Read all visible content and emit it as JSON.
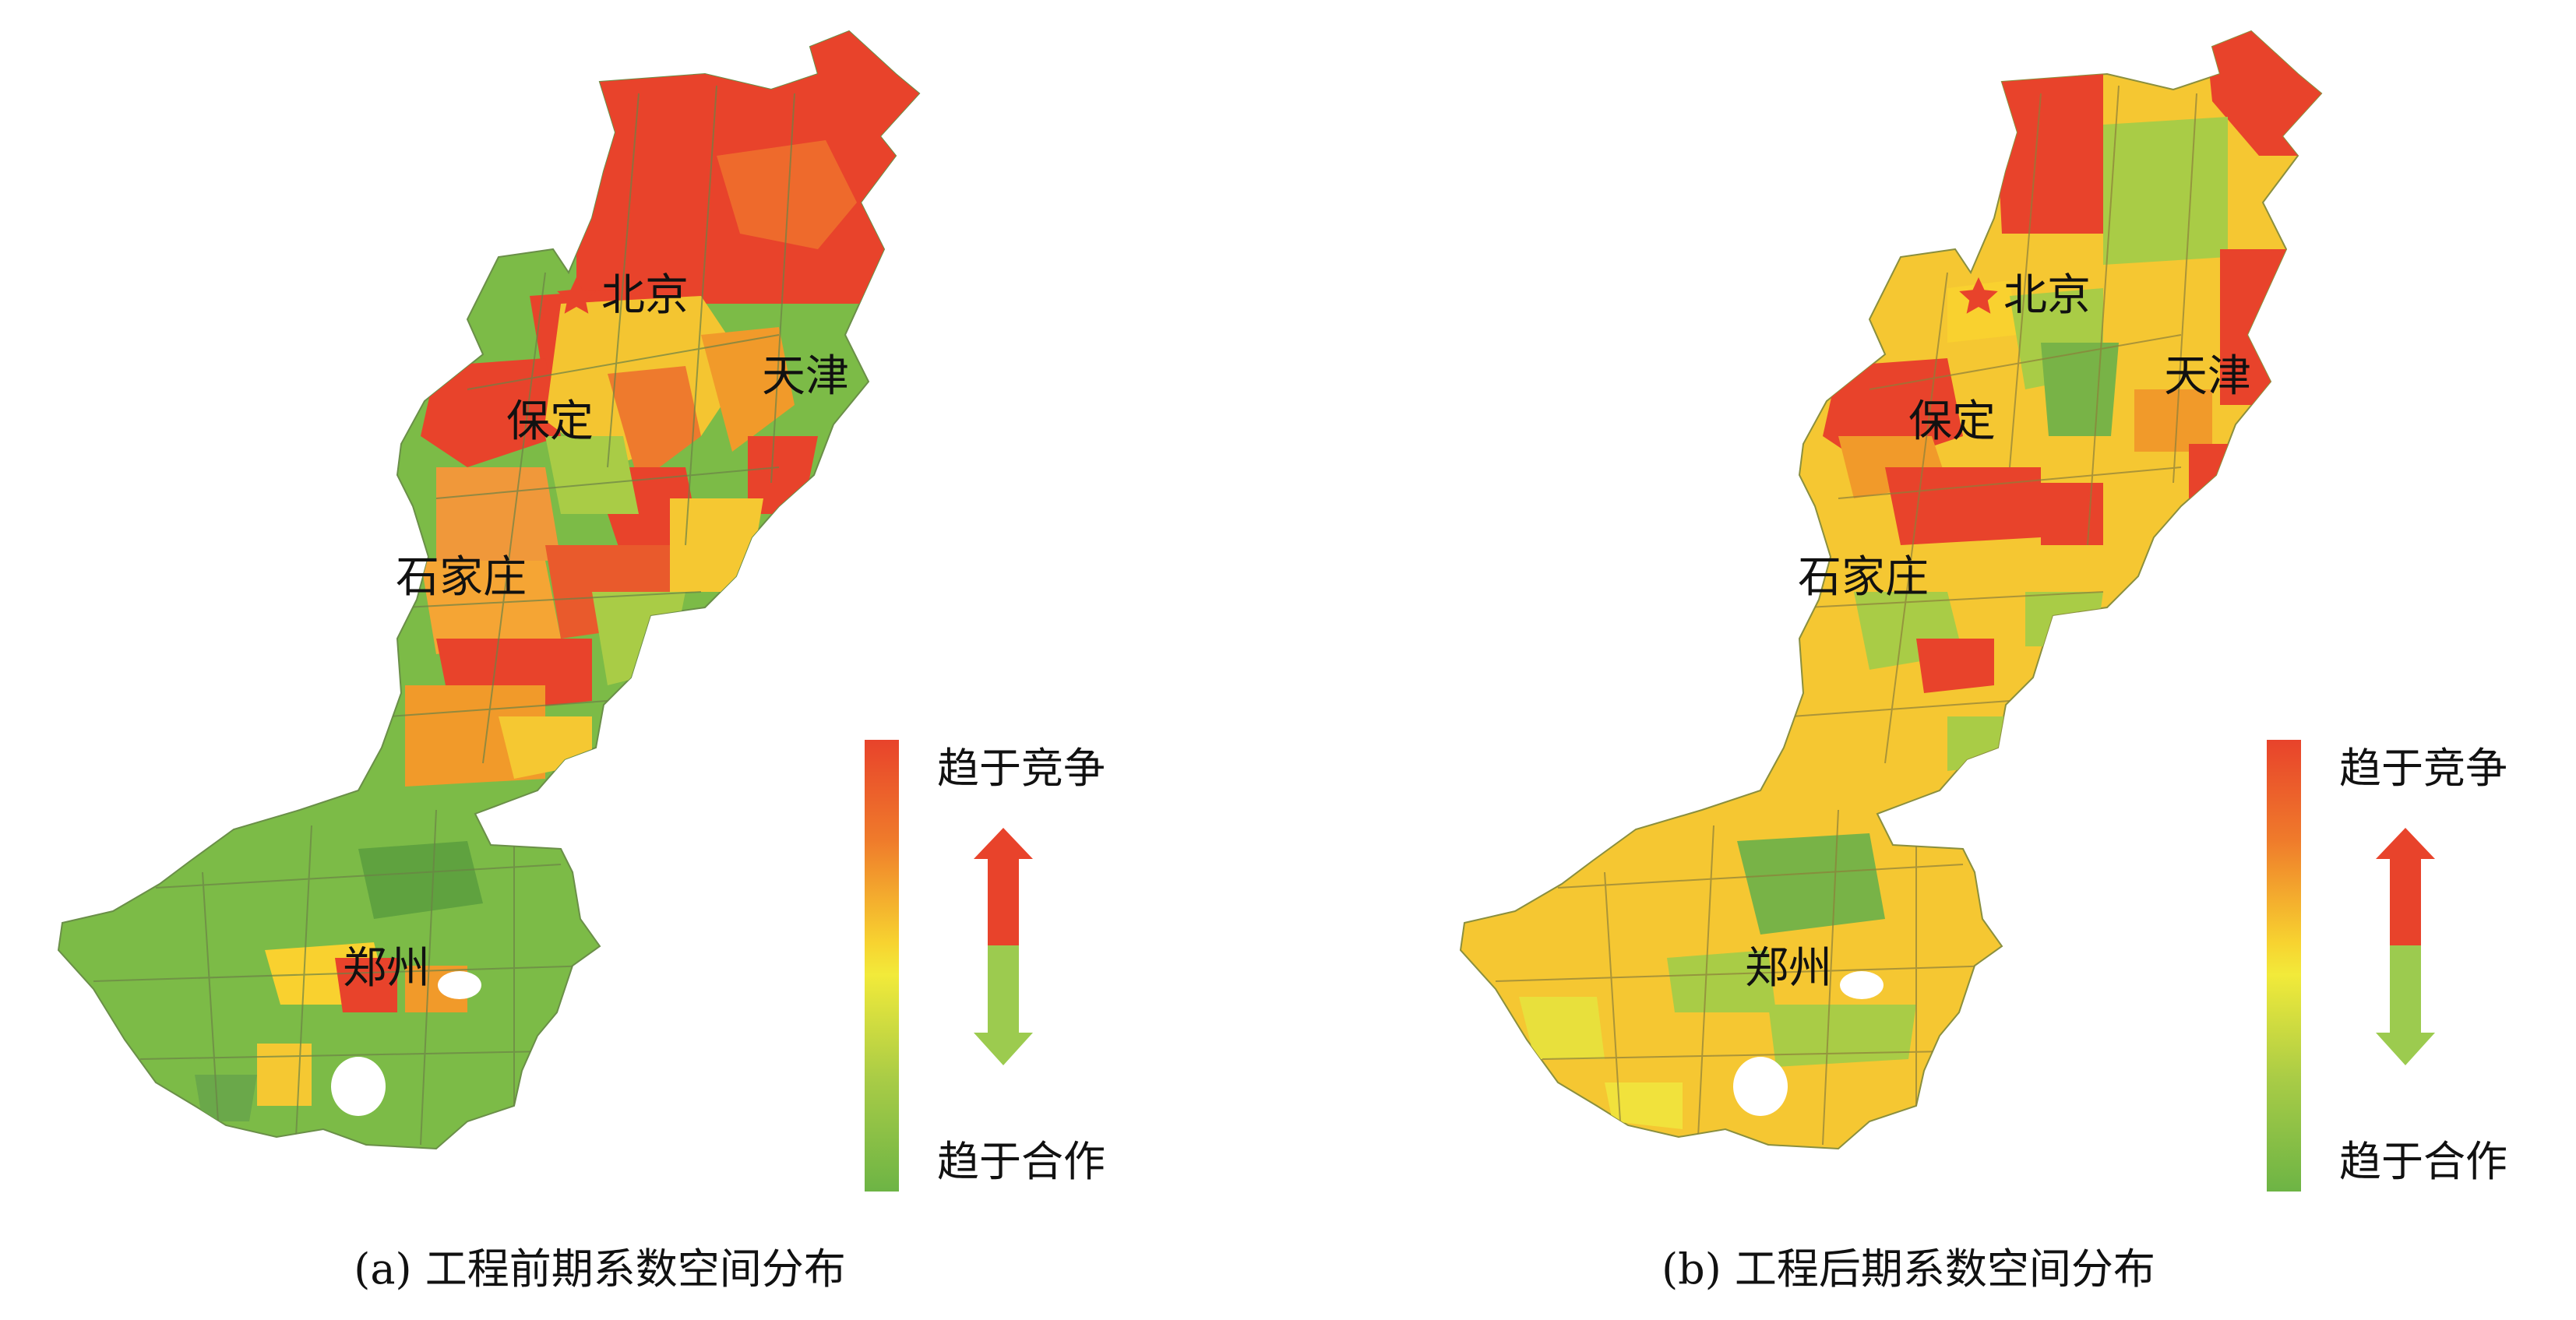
{
  "panels": [
    {
      "id": "a",
      "caption": "(a) 工程前期系数空间分布",
      "cities": {
        "beijing": "北京",
        "tianjin": "天津",
        "baoding": "保定",
        "shijiazhuang": "石家庄",
        "zhengzhou": "郑州"
      },
      "legend": {
        "top_label": "趋于竞争",
        "bottom_label": "趋于合作"
      }
    },
    {
      "id": "b",
      "caption": "(b) 工程后期系数空间分布",
      "cities": {
        "beijing": "北京",
        "tianjin": "天津",
        "baoding": "保定",
        "shijiazhuang": "石家庄",
        "zhengzhou": "郑州"
      },
      "legend": {
        "top_label": "趋于竞争",
        "bottom_label": "趋于合作"
      }
    }
  ],
  "colors": {
    "competition": "#e8432b",
    "orange": "#f19a2a",
    "yellow": "#f9d12f",
    "light_green": "#a9cc46",
    "cooperation": "#6db445",
    "capital_star": "#e8432b"
  },
  "icons": [
    "capital-star-icon",
    "arrow-up-icon",
    "arrow-down-icon"
  ]
}
